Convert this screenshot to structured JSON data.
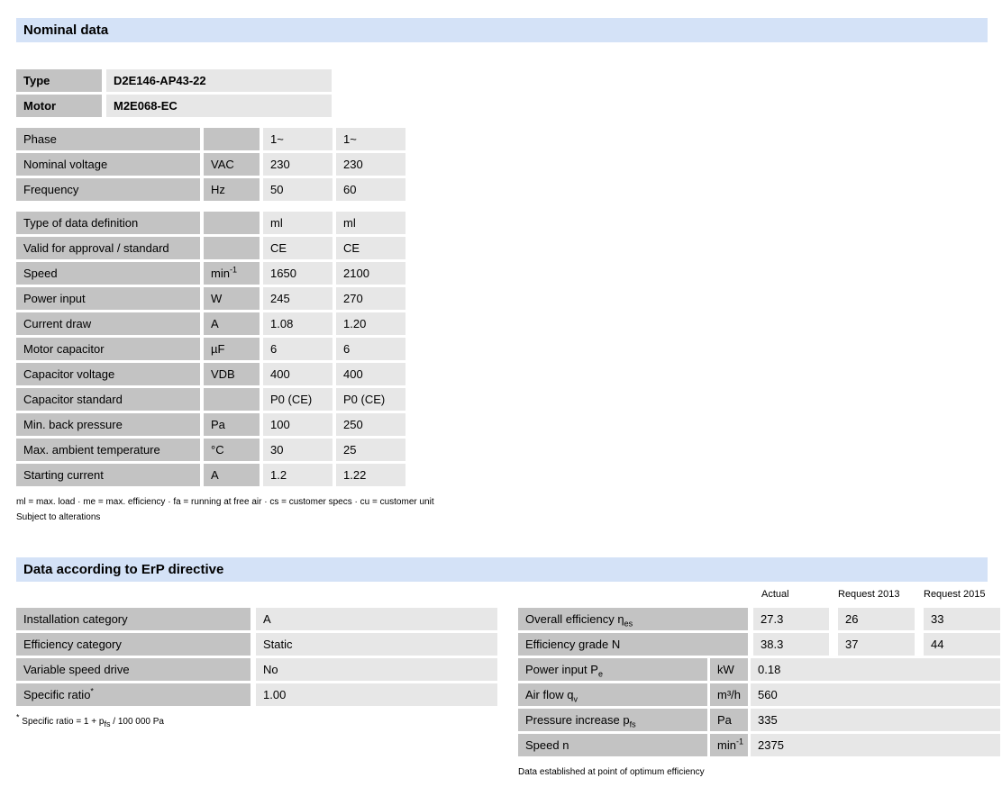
{
  "colors": {
    "section_header_bg": "#d4e2f7",
    "label_cell_bg": "#c3c3c3",
    "value_cell_bg": "#e7e7e7"
  },
  "nominal": {
    "title": "Nominal data",
    "id": {
      "rows": [
        {
          "label": "Type",
          "value": "D2E146-AP43-22"
        },
        {
          "label": "Motor",
          "value": "M2E068-EC"
        }
      ]
    },
    "phase": {
      "rows": [
        {
          "label": "Phase",
          "unit": "",
          "v1": "1~",
          "v2": "1~"
        },
        {
          "label": "Nominal voltage",
          "unit": "VAC",
          "v1": "230",
          "v2": "230"
        },
        {
          "label": "Frequency",
          "unit": "Hz",
          "v1": "50",
          "v2": "60"
        }
      ]
    },
    "main": {
      "rows": [
        {
          "label": "Type of data definition",
          "unit": "",
          "v1": "ml",
          "v2": "ml"
        },
        {
          "label": "Valid for approval / standard",
          "unit": "",
          "v1": "CE",
          "v2": "CE"
        },
        {
          "label": "Speed",
          "unit": "min",
          "unit_sup": "-1",
          "v1": "1650",
          "v2": "2100"
        },
        {
          "label": "Power input",
          "unit": "W",
          "v1": "245",
          "v2": "270"
        },
        {
          "label": "Current draw",
          "unit": "A",
          "v1": "1.08",
          "v2": "1.20"
        },
        {
          "label": "Motor capacitor",
          "unit": "µF",
          "v1": "6",
          "v2": "6"
        },
        {
          "label": "Capacitor voltage",
          "unit": "VDB",
          "v1": "400",
          "v2": "400"
        },
        {
          "label": "Capacitor standard",
          "unit": "",
          "v1": "P0 (CE)",
          "v2": "P0 (CE)"
        },
        {
          "label": "Min. back pressure",
          "unit": "Pa",
          "v1": "100",
          "v2": "250"
        },
        {
          "label": "Max. ambient temperature",
          "unit": "°C",
          "v1": "30",
          "v2": "25"
        },
        {
          "label": "Starting current",
          "unit": "A",
          "v1": "1.2",
          "v2": "1.22"
        }
      ]
    },
    "footnote1": "ml = max. load · me = max. efficiency · fa = running at free air · cs = customer specs · cu = customer unit",
    "footnote2": "Subject to alterations"
  },
  "erp": {
    "title": "Data according to ErP directive",
    "col_headers": [
      "Actual",
      "Request 2013",
      "Request 2015"
    ],
    "left": {
      "rows": [
        {
          "label": "Installation category",
          "value": "A"
        },
        {
          "label": "Efficiency category",
          "value": "Static"
        },
        {
          "label": "Variable speed drive",
          "value": "No"
        },
        {
          "label": "Specific ratio",
          "label_sup": "*",
          "value": "1.00"
        }
      ]
    },
    "left_footnote": {
      "sup": "*",
      "pre": " Specific ratio = 1 + p",
      "sub": "fs",
      "post": " / 100 000 Pa"
    },
    "right": {
      "wide_rows": [
        {
          "label": "Overall efficiency η",
          "label_sub": "es",
          "actual": "27.3",
          "req2013": "26",
          "req2015": "33"
        },
        {
          "label": "Efficiency grade N",
          "actual": "38.3",
          "req2013": "37",
          "req2015": "44"
        }
      ],
      "rows": [
        {
          "label": "Power input P",
          "label_sub": "e",
          "unit": "kW",
          "value": "0.18"
        },
        {
          "label": "Air flow q",
          "label_sub": "v",
          "unit": "m³/h",
          "value": "560"
        },
        {
          "label": "Pressure increase p",
          "label_sub": "fs",
          "unit": "Pa",
          "value": "335"
        },
        {
          "label": "Speed n",
          "unit": "min",
          "unit_sup": "-1",
          "value": "2375"
        }
      ]
    },
    "right_footnote": "Data established at point of optimum efficiency"
  }
}
